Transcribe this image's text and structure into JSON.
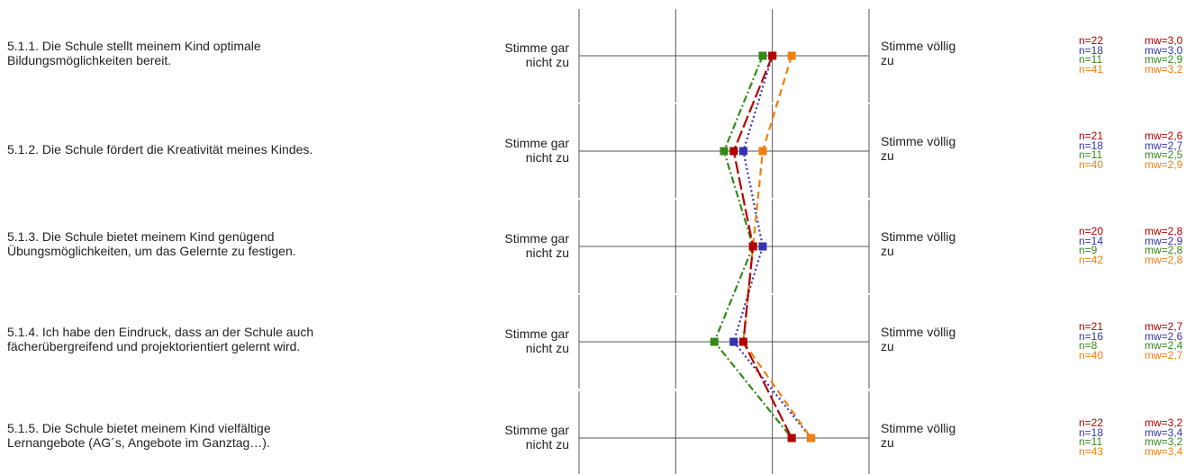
{
  "chart_data": {
    "type": "line",
    "orientation": "horizontal-profile",
    "scale_min": 1,
    "scale_max": 4,
    "scale_left_label": "Stimme gar nicht zu",
    "scale_right_label": "Stimme völlig zu",
    "items": [
      {
        "label_lines": [
          "5.1.1. Die Schule stellt meinem Kind optimale",
          "Bildungsmöglichkeiten bereit."
        ]
      },
      {
        "label_lines": [
          "5.1.2. Die Schule fördert die Kreativität meines Kindes."
        ]
      },
      {
        "label_lines": [
          "5.1.3. Die Schule bietet meinem Kind genügend",
          "Übungsmöglichkeiten, um das Gelernte zu festigen."
        ]
      },
      {
        "label_lines": [
          "5.1.4. Ich habe den Eindruck, dass an der Schule auch",
          "fächerübergreifend und projektorientiert gelernt wird."
        ]
      },
      {
        "label_lines": [
          "5.1.5. Die Schule bietet meinem Kind vielfältige",
          "Lernangebote (AG´s, Angebote im Ganztag…)."
        ]
      }
    ],
    "series": [
      {
        "color": "#b30000",
        "dash": "14,4",
        "values": [
          3.0,
          2.6,
          2.8,
          2.7,
          3.2
        ],
        "n_labels": [
          "n=22",
          "n=21",
          "n=20",
          "n=21",
          "n=22"
        ],
        "mw_labels": [
          "mw=3,0",
          "mw=2,6",
          "mw=2,8",
          "mw=2,7",
          "mw=3,2"
        ]
      },
      {
        "color": "#3333b3",
        "dash": "2,3",
        "values": [
          3.0,
          2.7,
          2.9,
          2.6,
          3.4
        ],
        "n_labels": [
          "n=18",
          "n=18",
          "n=14",
          "n=16",
          "n=18"
        ],
        "mw_labels": [
          "mw=3,0",
          "mw=2,7",
          "mw=2,9",
          "mw=2,6",
          "mw=3,4"
        ]
      },
      {
        "color": "#338a1a",
        "dash": "8,3,2,3",
        "values": [
          2.9,
          2.5,
          2.8,
          2.4,
          3.2
        ],
        "n_labels": [
          "n=11",
          "n=11",
          "n=9",
          "n=8",
          "n=11"
        ],
        "mw_labels": [
          "mw=2,9",
          "mw=2,5",
          "mw=2,8",
          "mw=2,4",
          "mw=3,2"
        ]
      },
      {
        "color": "#f07f0f",
        "dash": "8,5",
        "values": [
          3.2,
          2.9,
          2.8,
          2.7,
          3.4
        ],
        "n_labels": [
          "n=41",
          "n=40",
          "n=42",
          "n=40",
          "n=43"
        ],
        "mw_labels": [
          "mw=3,2",
          "mw=2,9",
          "mw=2,8",
          "mw=2,7",
          "mw=3,4"
        ]
      }
    ],
    "draw_order": [
      2,
      1,
      3,
      0
    ]
  }
}
